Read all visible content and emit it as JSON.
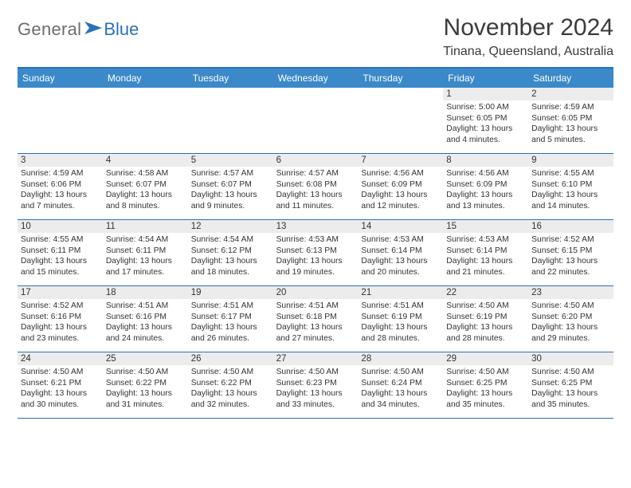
{
  "logo": {
    "general": "General",
    "blue": "Blue"
  },
  "title": "November 2024",
  "location": "Tinana, Queensland, Australia",
  "colors": {
    "header_bg": "#3b89c9",
    "border": "#2a71b8",
    "daynum_bg": "#ececec",
    "text": "#333333",
    "logo_gray": "#6d6d6d",
    "logo_blue": "#2a71b8"
  },
  "weekdays": [
    "Sunday",
    "Monday",
    "Tuesday",
    "Wednesday",
    "Thursday",
    "Friday",
    "Saturday"
  ],
  "weeks": [
    [
      {
        "blank": true
      },
      {
        "blank": true
      },
      {
        "blank": true
      },
      {
        "blank": true
      },
      {
        "blank": true
      },
      {
        "num": "1",
        "sunrise": "Sunrise: 5:00 AM",
        "sunset": "Sunset: 6:05 PM",
        "daylight": "Daylight: 13 hours and 4 minutes."
      },
      {
        "num": "2",
        "sunrise": "Sunrise: 4:59 AM",
        "sunset": "Sunset: 6:05 PM",
        "daylight": "Daylight: 13 hours and 5 minutes."
      }
    ],
    [
      {
        "num": "3",
        "sunrise": "Sunrise: 4:59 AM",
        "sunset": "Sunset: 6:06 PM",
        "daylight": "Daylight: 13 hours and 7 minutes."
      },
      {
        "num": "4",
        "sunrise": "Sunrise: 4:58 AM",
        "sunset": "Sunset: 6:07 PM",
        "daylight": "Daylight: 13 hours and 8 minutes."
      },
      {
        "num": "5",
        "sunrise": "Sunrise: 4:57 AM",
        "sunset": "Sunset: 6:07 PM",
        "daylight": "Daylight: 13 hours and 9 minutes."
      },
      {
        "num": "6",
        "sunrise": "Sunrise: 4:57 AM",
        "sunset": "Sunset: 6:08 PM",
        "daylight": "Daylight: 13 hours and 11 minutes."
      },
      {
        "num": "7",
        "sunrise": "Sunrise: 4:56 AM",
        "sunset": "Sunset: 6:09 PM",
        "daylight": "Daylight: 13 hours and 12 minutes."
      },
      {
        "num": "8",
        "sunrise": "Sunrise: 4:56 AM",
        "sunset": "Sunset: 6:09 PM",
        "daylight": "Daylight: 13 hours and 13 minutes."
      },
      {
        "num": "9",
        "sunrise": "Sunrise: 4:55 AM",
        "sunset": "Sunset: 6:10 PM",
        "daylight": "Daylight: 13 hours and 14 minutes."
      }
    ],
    [
      {
        "num": "10",
        "sunrise": "Sunrise: 4:55 AM",
        "sunset": "Sunset: 6:11 PM",
        "daylight": "Daylight: 13 hours and 15 minutes."
      },
      {
        "num": "11",
        "sunrise": "Sunrise: 4:54 AM",
        "sunset": "Sunset: 6:11 PM",
        "daylight": "Daylight: 13 hours and 17 minutes."
      },
      {
        "num": "12",
        "sunrise": "Sunrise: 4:54 AM",
        "sunset": "Sunset: 6:12 PM",
        "daylight": "Daylight: 13 hours and 18 minutes."
      },
      {
        "num": "13",
        "sunrise": "Sunrise: 4:53 AM",
        "sunset": "Sunset: 6:13 PM",
        "daylight": "Daylight: 13 hours and 19 minutes."
      },
      {
        "num": "14",
        "sunrise": "Sunrise: 4:53 AM",
        "sunset": "Sunset: 6:14 PM",
        "daylight": "Daylight: 13 hours and 20 minutes."
      },
      {
        "num": "15",
        "sunrise": "Sunrise: 4:53 AM",
        "sunset": "Sunset: 6:14 PM",
        "daylight": "Daylight: 13 hours and 21 minutes."
      },
      {
        "num": "16",
        "sunrise": "Sunrise: 4:52 AM",
        "sunset": "Sunset: 6:15 PM",
        "daylight": "Daylight: 13 hours and 22 minutes."
      }
    ],
    [
      {
        "num": "17",
        "sunrise": "Sunrise: 4:52 AM",
        "sunset": "Sunset: 6:16 PM",
        "daylight": "Daylight: 13 hours and 23 minutes."
      },
      {
        "num": "18",
        "sunrise": "Sunrise: 4:51 AM",
        "sunset": "Sunset: 6:16 PM",
        "daylight": "Daylight: 13 hours and 24 minutes."
      },
      {
        "num": "19",
        "sunrise": "Sunrise: 4:51 AM",
        "sunset": "Sunset: 6:17 PM",
        "daylight": "Daylight: 13 hours and 26 minutes."
      },
      {
        "num": "20",
        "sunrise": "Sunrise: 4:51 AM",
        "sunset": "Sunset: 6:18 PM",
        "daylight": "Daylight: 13 hours and 27 minutes."
      },
      {
        "num": "21",
        "sunrise": "Sunrise: 4:51 AM",
        "sunset": "Sunset: 6:19 PM",
        "daylight": "Daylight: 13 hours and 28 minutes."
      },
      {
        "num": "22",
        "sunrise": "Sunrise: 4:50 AM",
        "sunset": "Sunset: 6:19 PM",
        "daylight": "Daylight: 13 hours and 28 minutes."
      },
      {
        "num": "23",
        "sunrise": "Sunrise: 4:50 AM",
        "sunset": "Sunset: 6:20 PM",
        "daylight": "Daylight: 13 hours and 29 minutes."
      }
    ],
    [
      {
        "num": "24",
        "sunrise": "Sunrise: 4:50 AM",
        "sunset": "Sunset: 6:21 PM",
        "daylight": "Daylight: 13 hours and 30 minutes."
      },
      {
        "num": "25",
        "sunrise": "Sunrise: 4:50 AM",
        "sunset": "Sunset: 6:22 PM",
        "daylight": "Daylight: 13 hours and 31 minutes."
      },
      {
        "num": "26",
        "sunrise": "Sunrise: 4:50 AM",
        "sunset": "Sunset: 6:22 PM",
        "daylight": "Daylight: 13 hours and 32 minutes."
      },
      {
        "num": "27",
        "sunrise": "Sunrise: 4:50 AM",
        "sunset": "Sunset: 6:23 PM",
        "daylight": "Daylight: 13 hours and 33 minutes."
      },
      {
        "num": "28",
        "sunrise": "Sunrise: 4:50 AM",
        "sunset": "Sunset: 6:24 PM",
        "daylight": "Daylight: 13 hours and 34 minutes."
      },
      {
        "num": "29",
        "sunrise": "Sunrise: 4:50 AM",
        "sunset": "Sunset: 6:25 PM",
        "daylight": "Daylight: 13 hours and 35 minutes."
      },
      {
        "num": "30",
        "sunrise": "Sunrise: 4:50 AM",
        "sunset": "Sunset: 6:25 PM",
        "daylight": "Daylight: 13 hours and 35 minutes."
      }
    ]
  ]
}
